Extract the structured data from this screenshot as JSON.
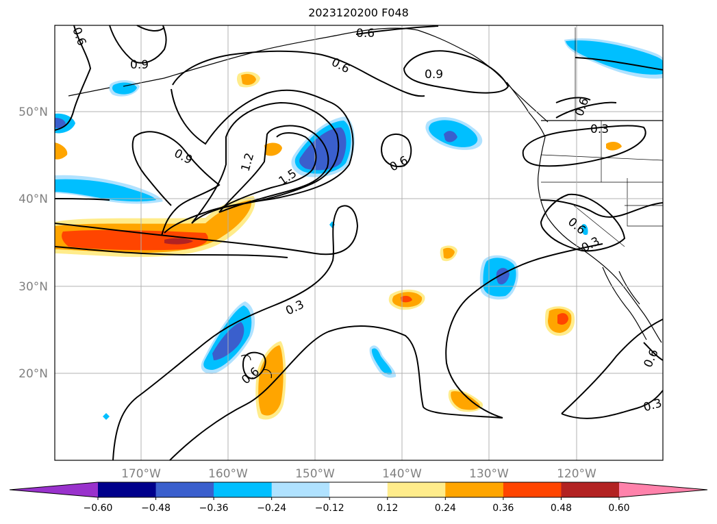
{
  "title": "2023120200 F048",
  "latitude_labels": [
    "50°N",
    "40°N",
    "30°N",
    "20°N"
  ],
  "longitude_labels": [
    "170°W",
    "160°W",
    "150°W",
    "140°W",
    "130°W",
    "120°W"
  ],
  "contour_labels": [
    "0.6",
    "0.9",
    "0.6",
    "0.9",
    "0.6",
    "0.9",
    "1.2",
    "1.5",
    "0.6",
    "0.3",
    "0.6",
    "0.3",
    "0.3",
    "0.6",
    "0.6",
    "0.3",
    "0.6"
  ],
  "colorbar": {
    "ticks": [
      "−0.60",
      "−0.48",
      "−0.36",
      "−0.24",
      "−0.12",
      "0.12",
      "0.24",
      "0.36",
      "0.48",
      "0.60"
    ],
    "colors": [
      "#9932cc",
      "#00008b",
      "#3a5fcd",
      "#00bfff",
      "#b0e2ff",
      "#ffffff",
      "#ffec8b",
      "#ffa500",
      "#ff4500",
      "#b22222",
      "#ff82ab"
    ]
  },
  "colors": {
    "neg_light": "#b0e2ff",
    "neg_mid": "#00bfff",
    "neg_strong": "#3a5fcd",
    "neg_deep": "#9932cc",
    "pos_light": "#ffec8b",
    "pos_mid": "#ffa500",
    "pos_strong": "#ff4500",
    "pos_deep": "#b22222"
  }
}
